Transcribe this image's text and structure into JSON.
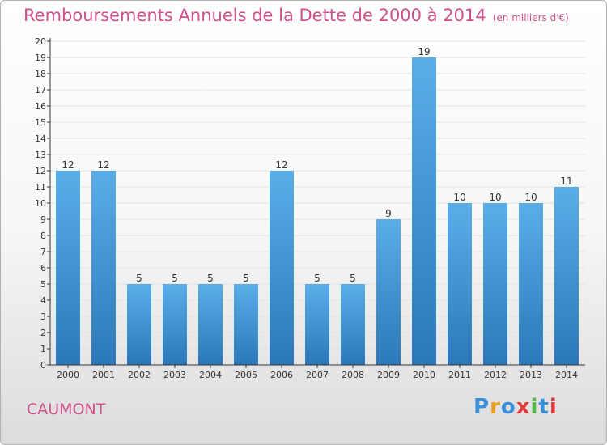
{
  "header": {
    "title": "Remboursements Annuels de la Dette de 2000 à 2014",
    "unit_note": "(en milliers d'€)"
  },
  "footer": {
    "commune": "CAUMONT",
    "brand": "Proxiti",
    "brand_colors": [
      "#3a8fd8",
      "#e8a020",
      "#3a8fd8",
      "#e23a3a",
      "#58b848",
      "#3a8fd8",
      "#e23a3a"
    ]
  },
  "colors": {
    "bar_top": "#5aaee8",
    "bar_bottom": "#2a78b8",
    "axis": "#333333",
    "text": "#333333",
    "grid": "#e3e3e3",
    "title": "#d0508c"
  },
  "chart_data": {
    "type": "bar",
    "categories": [
      "2000",
      "2001",
      "2002",
      "2003",
      "2004",
      "2005",
      "2006",
      "2007",
      "2008",
      "2009",
      "2010",
      "2011",
      "2012",
      "2013",
      "2014"
    ],
    "values": [
      12,
      12,
      5,
      5,
      5,
      5,
      12,
      5,
      5,
      9,
      19,
      10,
      10,
      10,
      11
    ],
    "data_labels": [
      "12",
      "12",
      "5",
      "5",
      "5",
      "5",
      "12",
      "5",
      "5",
      "9",
      "19",
      "10",
      "10",
      "10",
      "11"
    ],
    "title": "Remboursements Annuels de la Dette de 2000 à 2014",
    "subtitle": "(en milliers d'€)",
    "xlabel": "",
    "ylabel": "",
    "ylim": [
      0,
      20
    ],
    "yticks": [
      0,
      1,
      2,
      3,
      4,
      5,
      6,
      7,
      8,
      9,
      10,
      11,
      12,
      13,
      14,
      15,
      16,
      17,
      18,
      19,
      20
    ],
    "grid": true,
    "legend": "none"
  }
}
